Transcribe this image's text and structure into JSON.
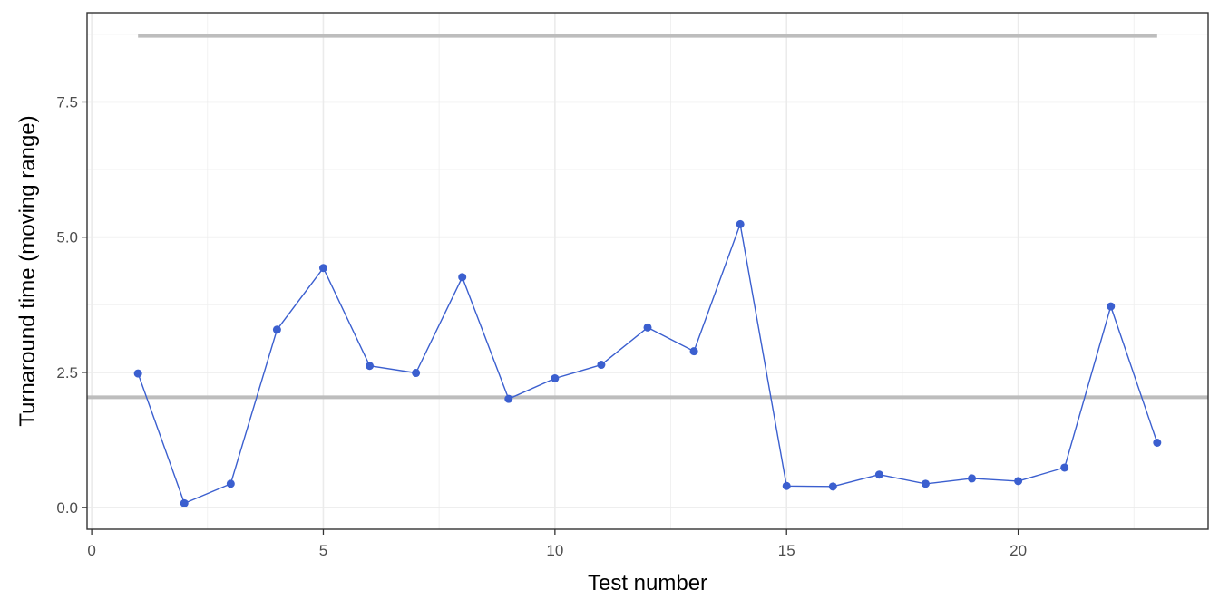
{
  "chart_data": {
    "type": "line",
    "title": "",
    "xlabel": "Test number",
    "ylabel": "Turnaround time (moving range)",
    "xlim": [
      -0.1,
      24.1
    ],
    "ylim": [
      -0.4,
      9.15
    ],
    "x_ticks": [
      0,
      5,
      10,
      15,
      20
    ],
    "x_tick_labels": [
      "0",
      "5",
      "10",
      "15",
      "20"
    ],
    "x_minor_ticks": [
      2.5,
      7.5,
      12.5,
      17.5,
      22.5
    ],
    "y_ticks": [
      0,
      2.5,
      5,
      7.5
    ],
    "y_tick_labels": [
      "0.0",
      "2.5",
      "5.0",
      "7.5"
    ],
    "y_minor_ticks": [
      1.25,
      3.75,
      6.25,
      8.75
    ],
    "grid": true,
    "series": [
      {
        "color": "#3b5fcf",
        "x": [
          1,
          2,
          3,
          4,
          5,
          6,
          7,
          8,
          9,
          10,
          11,
          12,
          13,
          14,
          15,
          16,
          17,
          18,
          19,
          20,
          21,
          22,
          23
        ],
        "values": [
          2.48,
          0.08,
          0.44,
          3.29,
          4.43,
          2.62,
          2.49,
          4.26,
          2.01,
          2.39,
          2.64,
          3.33,
          2.89,
          5.24,
          0.4,
          0.39,
          0.61,
          0.44,
          0.54,
          0.49,
          0.74,
          3.72,
          1.2
        ]
      }
    ],
    "reference_lines": [
      {
        "y": 8.72,
        "x_range": [
          1,
          23
        ],
        "color": "#bdbdbd"
      },
      {
        "y": 2.04,
        "x_range": [
          -0.1,
          24.1
        ],
        "color": "#bdbdbd"
      }
    ]
  }
}
